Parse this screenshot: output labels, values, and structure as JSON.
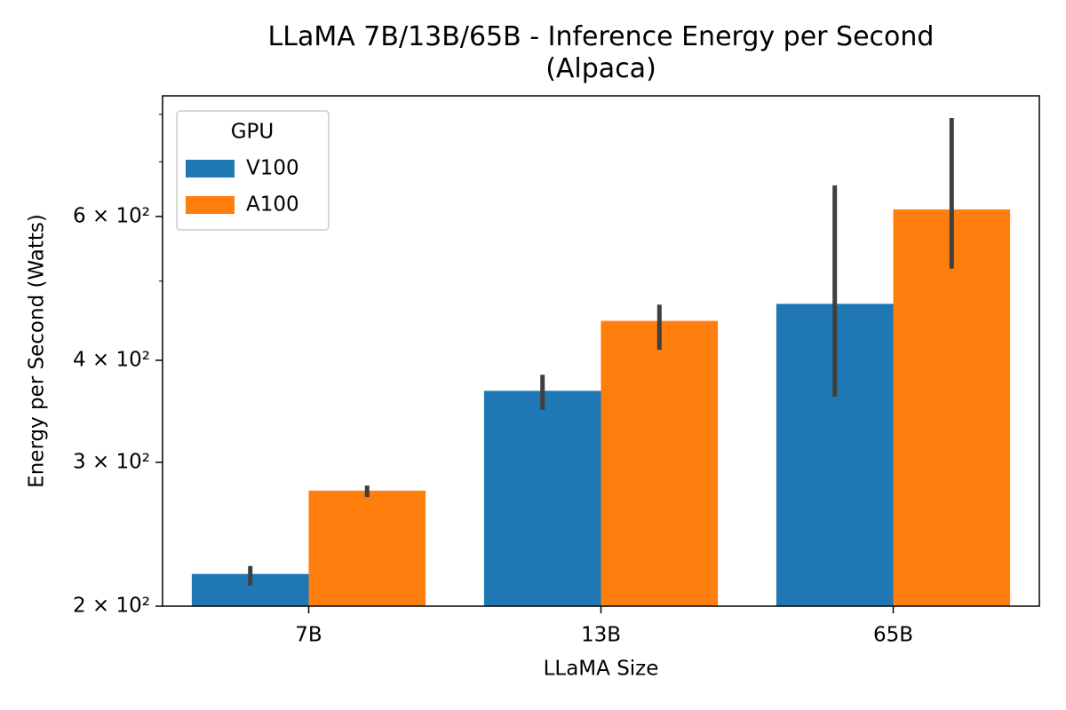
{
  "chart_data": {
    "type": "bar",
    "title": "LLaMA 7B/13B/65B - Inference Energy per Second\n(Alpaca)",
    "x_label": "LLaMA Size",
    "y_label": "Energy per Second (Watts)",
    "categories": [
      "7B",
      "13B",
      "65B"
    ],
    "series": [
      {
        "name": "V100",
        "color": "#1f77b4",
        "values": [
          219,
          367,
          469
        ],
        "ci_low": [
          212,
          348,
          361
        ],
        "ci_high": [
          224,
          384,
          655
        ]
      },
      {
        "name": "A100",
        "color": "#ff7f0e",
        "values": [
          277,
          447,
          612
        ],
        "ci_low": [
          272,
          412,
          518
        ],
        "ci_high": [
          281,
          468,
          792
        ]
      }
    ],
    "log_y": true,
    "ylim": [
      200,
      843
    ],
    "yticks": [
      {
        "value": 200,
        "label": "2 × 10²"
      },
      {
        "value": 300,
        "label": "3 × 10²"
      },
      {
        "value": 400,
        "label": "4 × 10²"
      },
      {
        "value": 600,
        "label": "6 × 10²"
      }
    ],
    "minor_yticks": [
      500,
      700,
      800
    ],
    "legend_title": "GPU",
    "legend": "upper left",
    "errorbar_color": "#3f3f3f"
  }
}
